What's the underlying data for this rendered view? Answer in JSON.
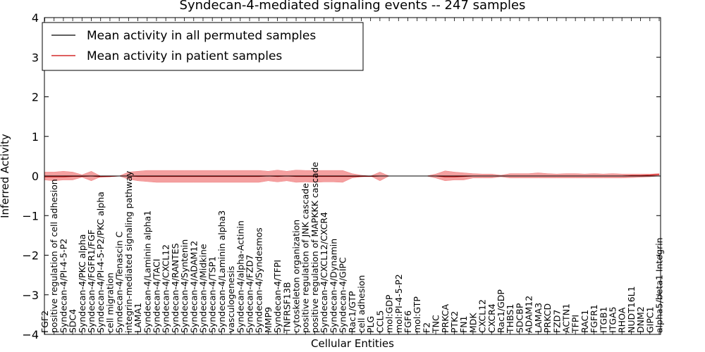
{
  "chart_data": {
    "type": "line",
    "title": "Syndecan-4-mediated signaling events -- 247 samples",
    "xlabel": "Cellular Entities",
    "ylabel": "Inferred Activity",
    "ylim": [
      -4,
      4
    ],
    "yticks": [
      -4,
      -3,
      -2,
      -1,
      0,
      1,
      2,
      3,
      4
    ],
    "grid": false,
    "legend_position": "top-left",
    "categories": [
      "FGF2",
      "positive regulation of cell adhesion",
      "Syndecan-4/PI-4-5-P2",
      "SDC4",
      "Syndecan-4/PKC alpha",
      "Syndecan-4/FGFR1/FGF",
      "Syndecan-4/PI-4-5-P2/PKC alpha",
      "cell migration",
      "Syndecan-4/Tenascin C",
      "integrin-mediated signaling pathway",
      "LAMA1",
      "Syndecan-4/Laminin alpha1",
      "Syndecan-4/TACI",
      "Syndecan-4/CXCL12",
      "Syndecan-4/RANTES",
      "Syndecan-4/Syntenin",
      "Syndecan-4/ADAM12",
      "Syndecan-4/Midkine",
      "Syndecan-4/TSP1",
      "Syndecan-4/Laminin alpha3",
      "vasculogenesis",
      "Syndecan-4/alpha-Actinin",
      "Syndecan-4/FZD7",
      "Syndecan-4/Syndesmos",
      "MMP9",
      "Syndecan-4/TFPI",
      "TNFRSF13B",
      "cytoskeleton organization",
      "positive regulation of JNK cascade",
      "positive regulation of MAPKKK cascade",
      "Syndecan-4/CXCL12/CXCR4",
      "Syndecan-4/Dynamin",
      "Syndecan-4/GIPC",
      "Rac1/GTP",
      "cell adhesion",
      "PLG",
      "CCL5",
      "mol:GDP",
      "mol:PI-4-5-P2",
      "FGF6",
      "mol:GTP",
      "F2",
      "TNC",
      "PRKCA",
      "PTK2",
      "FN1",
      "MDK",
      "CXCL12",
      "CXCR4",
      "Rac1/GDP",
      "THBS1",
      "SDCBP",
      "ADAM12",
      "LAMA3",
      "PRKCD",
      "FZD7",
      "ACTN1",
      "TFPI",
      "RAC1",
      "FGFR1",
      "ITGB1",
      "ITGA5",
      "RHOA",
      "NUDT16L1",
      "DNM2",
      "GIPC1",
      "alpha5/beta1 Integrin"
    ],
    "series": [
      {
        "name": "Mean activity in all permuted samples",
        "color": "#000000",
        "values": [
          0,
          0,
          0,
          0,
          0,
          0,
          0,
          0,
          0,
          0,
          0,
          0,
          0,
          0,
          0,
          0,
          0,
          0,
          0,
          0,
          0,
          0,
          0,
          0,
          0,
          0,
          0,
          0,
          0,
          0,
          0,
          0,
          0,
          0,
          0,
          0,
          0,
          0,
          0,
          0,
          0,
          0,
          0,
          0,
          0,
          0,
          0,
          0,
          0,
          0,
          0,
          0,
          0,
          0,
          0,
          0,
          0,
          0,
          0,
          0,
          0,
          0,
          0,
          0,
          0,
          0,
          0
        ]
      },
      {
        "name": "Mean activity in patient samples",
        "color": "#cc0000",
        "band_color": "#f08080",
        "values": [
          -0.02,
          -0.02,
          -0.02,
          -0.01,
          -0.01,
          0.0,
          -0.02,
          -0.01,
          0.0,
          0.0,
          -0.01,
          -0.01,
          -0.01,
          -0.01,
          -0.01,
          -0.01,
          -0.01,
          -0.01,
          -0.01,
          -0.01,
          -0.01,
          -0.01,
          -0.01,
          -0.01,
          0.0,
          -0.01,
          0.0,
          -0.01,
          -0.01,
          -0.01,
          -0.01,
          -0.01,
          -0.01,
          -0.01,
          -0.01,
          -0.01,
          0.0,
          0.0,
          0.0,
          0.0,
          0.0,
          0.0,
          0.0,
          -0.02,
          -0.02,
          -0.01,
          0.0,
          0.0,
          0.0,
          0.0,
          0.0,
          0.0,
          0.0,
          0.0,
          0.0,
          0.0,
          0.0,
          0.0,
          0.0,
          0.0,
          0.0,
          0.0,
          0.0,
          0.01,
          0.01,
          0.02,
          0.04
        ],
        "upper": [
          0.1,
          0.1,
          0.12,
          0.1,
          0.03,
          0.12,
          0.0,
          0.0,
          0.0,
          0.1,
          0.12,
          0.14,
          0.14,
          0.14,
          0.14,
          0.14,
          0.14,
          0.14,
          0.14,
          0.14,
          0.14,
          0.14,
          0.14,
          0.14,
          0.12,
          0.15,
          0.12,
          0.15,
          0.14,
          0.14,
          0.14,
          0.14,
          0.14,
          0.06,
          0.02,
          0.0,
          0.1,
          0.0,
          0.0,
          0.0,
          0.0,
          0.0,
          0.05,
          0.13,
          0.1,
          0.08,
          0.06,
          0.05,
          0.05,
          0.02,
          0.06,
          0.06,
          0.06,
          0.08,
          0.06,
          0.05,
          0.06,
          0.06,
          0.05,
          0.06,
          0.05,
          0.06,
          0.05,
          0.05,
          0.05,
          0.05,
          0.06
        ],
        "lower": [
          -0.1,
          -0.12,
          -0.1,
          -0.1,
          -0.03,
          -0.12,
          -0.02,
          -0.02,
          0.0,
          -0.08,
          -0.12,
          -0.14,
          -0.16,
          -0.16,
          -0.16,
          -0.16,
          -0.16,
          -0.16,
          -0.16,
          -0.16,
          -0.16,
          -0.16,
          -0.16,
          -0.16,
          -0.12,
          -0.15,
          -0.12,
          -0.16,
          -0.15,
          -0.16,
          -0.15,
          -0.15,
          -0.16,
          -0.05,
          -0.02,
          0.0,
          -0.12,
          0.0,
          0.0,
          0.0,
          0.0,
          0.0,
          -0.05,
          -0.12,
          -0.1,
          -0.1,
          -0.05,
          -0.05,
          -0.05,
          -0.02,
          -0.05,
          -0.05,
          -0.05,
          -0.05,
          -0.05,
          -0.05,
          -0.05,
          -0.05,
          -0.05,
          -0.05,
          -0.05,
          -0.05,
          -0.05,
          -0.04,
          -0.03,
          -0.02,
          0.0
        ]
      }
    ]
  }
}
